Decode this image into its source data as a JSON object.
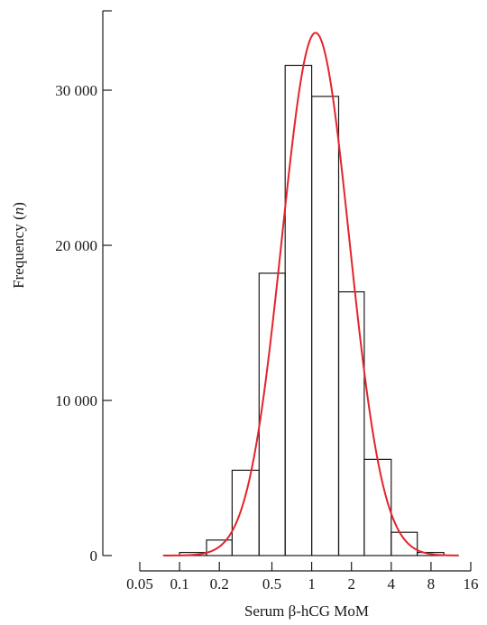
{
  "chart_data": {
    "type": "bar",
    "xlabel": "Serum β-hCG MoM",
    "ylabel_prefix": "Frequency (",
    "ylabel_var": "n",
    "ylabel_suffix": ")",
    "x_scale": "log",
    "xlim": [
      0.05,
      16
    ],
    "ylim": [
      0,
      35000
    ],
    "x_ticks": [
      0.05,
      0.1,
      0.2,
      0.5,
      1,
      2,
      4,
      8,
      16
    ],
    "x_tick_labels": [
      "0.05",
      "0.1",
      "0.2",
      "0.5",
      "1",
      "2",
      "4",
      "8",
      "16"
    ],
    "y_ticks": [
      0,
      10000,
      20000,
      30000
    ],
    "y_tick_labels": [
      "0",
      "10 000",
      "20 000",
      "30 000"
    ],
    "bins": [
      {
        "x0": 0.1,
        "x1": 0.16,
        "value": 200
      },
      {
        "x0": 0.16,
        "x1": 0.25,
        "value": 1000
      },
      {
        "x0": 0.25,
        "x1": 0.4,
        "value": 5500
      },
      {
        "x0": 0.4,
        "x1": 0.63,
        "value": 18200
      },
      {
        "x0": 0.63,
        "x1": 1.0,
        "value": 31600
      },
      {
        "x0": 1.0,
        "x1": 1.6,
        "value": 29600
      },
      {
        "x0": 1.6,
        "x1": 2.5,
        "value": 17000
      },
      {
        "x0": 2.5,
        "x1": 4.0,
        "value": 6200
      },
      {
        "x0": 4.0,
        "x1": 6.3,
        "value": 1500
      },
      {
        "x0": 6.3,
        "x1": 10.0,
        "value": 200
      }
    ],
    "fit_curve": {
      "type": "lognormal",
      "color": "#e3242b",
      "peak_x": 1.07,
      "peak_value": 33700,
      "log10_sd": 0.255,
      "x_range": [
        0.075,
        13
      ]
    },
    "grid": false,
    "legend": "none"
  }
}
